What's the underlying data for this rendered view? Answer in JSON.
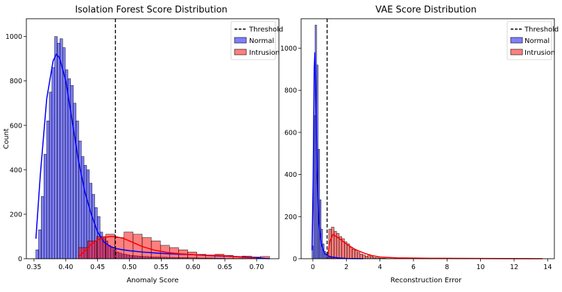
{
  "chart_data": [
    {
      "type": "histogram",
      "title": "Isolation Forest Score Distribution",
      "xlabel": "Anomaly Score",
      "ylabel": "Count",
      "xlim": [
        0.338,
        0.735
      ],
      "ylim": [
        0,
        1080
      ],
      "xticks": [
        0.35,
        0.4,
        0.45,
        0.5,
        0.55,
        0.6,
        0.65,
        0.7
      ],
      "xtick_labels": [
        "0.35",
        "0.40",
        "0.45",
        "0.50",
        "0.55",
        "0.60",
        "0.65",
        "0.70"
      ],
      "yticks": [
        0,
        200,
        400,
        600,
        800,
        1000
      ],
      "ytick_labels": [
        "0",
        "200",
        "400",
        "600",
        "800",
        "1000"
      ],
      "threshold": 0.478,
      "legend": {
        "position": "top-right",
        "entries": [
          "Threshold",
          "Normal",
          "Intrusion"
        ]
      },
      "series": [
        {
          "name": "Normal",
          "color": "#0000ff",
          "bin_start": 0.353,
          "bin_width": 0.0042,
          "counts": [
            40,
            130,
            280,
            470,
            620,
            750,
            860,
            1000,
            970,
            990,
            950,
            850,
            810,
            780,
            700,
            620,
            530,
            460,
            420,
            400,
            340,
            290,
            230,
            190,
            120,
            90,
            80,
            60,
            50,
            40,
            30,
            26,
            22,
            20,
            18,
            15,
            14,
            13,
            12,
            11,
            10,
            10,
            9,
            8,
            8,
            8,
            7,
            7,
            7,
            6,
            6,
            6,
            5,
            5,
            5,
            5,
            5,
            4,
            4,
            4,
            4,
            3,
            3,
            3,
            3,
            3,
            2,
            2,
            2,
            2,
            1,
            1,
            1,
            1,
            1,
            1,
            1,
            1,
            1
          ],
          "kde_x": [
            0.353,
            0.36,
            0.37,
            0.38,
            0.385,
            0.39,
            0.4,
            0.41,
            0.42,
            0.43,
            0.44,
            0.45,
            0.46,
            0.47,
            0.48,
            0.49,
            0.5,
            0.52,
            0.55,
            0.58,
            0.6,
            0.62,
            0.65,
            0.68,
            0.7,
            0.72
          ],
          "kde_y": [
            90,
            380,
            720,
            890,
            920,
            905,
            800,
            620,
            440,
            300,
            200,
            120,
            75,
            55,
            45,
            40,
            36,
            30,
            24,
            20,
            18,
            15,
            12,
            8,
            4,
            0
          ]
        },
        {
          "name": "Intrusion",
          "color": "#ff0000",
          "bin_start": 0.42,
          "bin_width": 0.0143,
          "counts": [
            50,
            80,
            100,
            110,
            95,
            120,
            110,
            95,
            80,
            60,
            50,
            40,
            30,
            20,
            15,
            20,
            15,
            10,
            12,
            8,
            10
          ],
          "kde_x": [
            0.42,
            0.43,
            0.44,
            0.45,
            0.46,
            0.47,
            0.48,
            0.49,
            0.5,
            0.52,
            0.54,
            0.56,
            0.58,
            0.6,
            0.62,
            0.64,
            0.66,
            0.68,
            0.7
          ],
          "kde_y": [
            8,
            35,
            65,
            85,
            95,
            100,
            98,
            92,
            80,
            55,
            38,
            28,
            22,
            18,
            16,
            15,
            11,
            6,
            2
          ]
        }
      ]
    },
    {
      "type": "histogram",
      "title": "VAE Score Distribution",
      "xlabel": "Reconstruction Error",
      "ylabel": "",
      "xlim": [
        -0.7,
        14.4
      ],
      "ylim": [
        0,
        1140
      ],
      "xticks": [
        0,
        2,
        4,
        6,
        8,
        10,
        12,
        14
      ],
      "xtick_labels": [
        "0",
        "2",
        "4",
        "6",
        "8",
        "10",
        "12",
        "14"
      ],
      "yticks": [
        0,
        200,
        400,
        600,
        800,
        1000
      ],
      "ytick_labels": [
        "0",
        "200",
        "400",
        "600",
        "800",
        "1000"
      ],
      "threshold": 0.85,
      "legend": {
        "position": "top-right",
        "entries": [
          "Threshold",
          "Normal",
          "Intrusion"
        ]
      },
      "series": [
        {
          "name": "Normal",
          "color": "#0000ff",
          "bin_start": -0.05,
          "bin_width": 0.09,
          "counts": [
            60,
            680,
            1110,
            920,
            520,
            280,
            140,
            70,
            35,
            18,
            10,
            6,
            4,
            3,
            2,
            1
          ],
          "kde_x": [
            -0.05,
            0.02,
            0.08,
            0.12,
            0.18,
            0.25,
            0.35,
            0.5,
            0.7,
            1.0,
            1.5,
            2.0,
            3.0
          ],
          "kde_y": [
            40,
            380,
            900,
            980,
            780,
            420,
            180,
            70,
            25,
            10,
            4,
            1,
            0
          ]
        },
        {
          "name": "Intrusion",
          "color": "#ff0000",
          "bin_start": 0.95,
          "bin_width": 0.155,
          "counts": [
            140,
            150,
            130,
            120,
            105,
            95,
            80,
            70,
            55,
            45,
            40,
            30,
            22,
            18,
            12,
            20,
            10,
            6,
            4,
            3,
            2,
            2,
            1,
            1
          ],
          "kde_x": [
            0.9,
            1.0,
            1.2,
            1.5,
            2.0,
            2.5,
            3.0,
            3.5,
            4.0,
            5.0,
            7.0,
            10.0,
            13.7
          ],
          "kde_y": [
            20,
            80,
            115,
            100,
            70,
            45,
            28,
            15,
            8,
            4,
            2,
            1,
            0
          ]
        }
      ]
    }
  ]
}
